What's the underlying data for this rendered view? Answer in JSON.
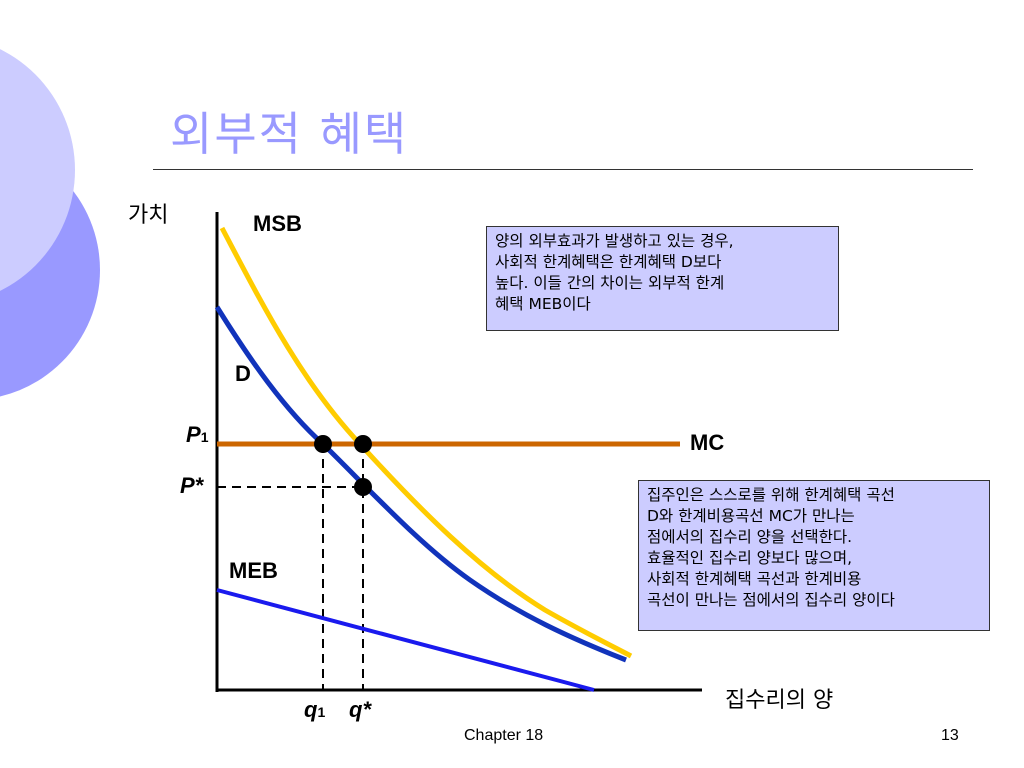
{
  "slide": {
    "title": "외부적 혜택",
    "footer_chapter": "Chapter 18",
    "page_number": "13"
  },
  "diagram": {
    "y_axis_label": "가치",
    "x_axis_label": "집수리의 양",
    "curve_labels": {
      "msb": "MSB",
      "d": "D",
      "mc": "MC",
      "meb": "MEB"
    },
    "price_labels": {
      "p1": "P",
      "p1_sub": "1",
      "pstar": "P*"
    },
    "quantity_labels": {
      "q1": "q",
      "q1_sub": "1",
      "qstar": "q*"
    },
    "colors": {
      "msb": "#ffcc00",
      "d": "#1133bb",
      "mc": "#cc6600",
      "meb": "#1a1aee",
      "accent": "#9999ff",
      "note_bg": "#ccccff"
    }
  },
  "notes": {
    "top": "양의 외부효과가 발생하고 있는 경우,\n사회적 한계혜택은 한계혜택 D보다\n높다. 이들 간의 차이는 외부적 한계\n혜택 MEB이다",
    "bottom": "집주인은 스스로를 위해 한계혜택 곡선\nD와 한계비용곡선 MC가 만나는\n점에서의 집수리 양을 선택한다.\n효율적인 집수리 양보다 많으며,\n사회적 한계혜택 곡선과 한계비용\n곡선이 만나는 점에서의 집수리 양이다"
  }
}
